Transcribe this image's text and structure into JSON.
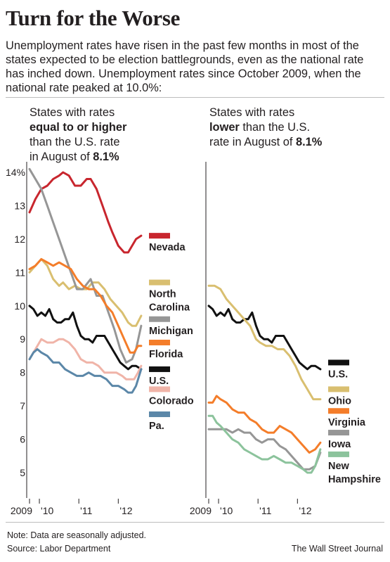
{
  "header": {
    "title": "Turn for the Worse",
    "subtitle": "Unemployment rates have risen in the past few months in most of the states expected to be election battlegrounds, even as the national rate has inched down. Unemployment rates since October 2009, when the national rate peaked at 10.0%:"
  },
  "panels": {
    "left": {
      "pre": "States with rates",
      "bold": "equal to or higher",
      "post1": "than the U.S. rate",
      "post2": "in August of ",
      "rate": "8.1%"
    },
    "right": {
      "pre": "States with rates",
      "bold": "lower",
      "post1": " than the U.S.",
      "post2": "rate in August of ",
      "rate": "8.1%"
    }
  },
  "footer": {
    "note": "Note: Data are seasonally adjusted.",
    "source": "Source: Labor Department",
    "credit": "The Wall Street Journal"
  },
  "chart_data": [
    {
      "type": "line",
      "title": "States with rates equal to or higher than the U.S. rate in August of 8.1%",
      "x_tick_labels": [
        "2009",
        "'10",
        "'11",
        "'12"
      ],
      "x_ticks": [
        2009.75,
        2010.0,
        2011.0,
        2012.0
      ],
      "xlim": [
        2009.75,
        2012.6
      ],
      "ylim": [
        4.3,
        14.0
      ],
      "y_ticks": [
        5,
        6,
        7,
        8,
        9,
        10,
        11,
        12,
        13,
        14
      ],
      "y_tick_labels": [
        "5",
        "6",
        "7",
        "8",
        "9",
        "10",
        "11",
        "12",
        "13",
        "14%"
      ],
      "grid": false,
      "legend": "right of lines, stacked",
      "series": [
        {
          "name": "Nevada",
          "color": "#c8262e",
          "legend_y": 12.1,
          "x": [
            2009.75,
            2009.9,
            2010.05,
            2010.2,
            2010.35,
            2010.5,
            2010.6,
            2010.75,
            2010.9,
            2011.05,
            2011.2,
            2011.3,
            2011.45,
            2011.6,
            2011.75,
            2011.85,
            2012.0,
            2012.15,
            2012.25,
            2012.35,
            2012.45,
            2012.58
          ],
          "values": [
            12.8,
            13.2,
            13.5,
            13.6,
            13.8,
            13.9,
            14.0,
            13.9,
            13.6,
            13.6,
            13.8,
            13.8,
            13.5,
            13.0,
            12.5,
            12.2,
            11.8,
            11.6,
            11.6,
            11.8,
            12.0,
            12.1
          ]
        },
        {
          "name": "North Carolina",
          "color": "#d9bf70",
          "legend_y": 10.7,
          "x": [
            2009.75,
            2009.9,
            2010.05,
            2010.2,
            2010.35,
            2010.5,
            2010.6,
            2010.75,
            2010.9,
            2011.05,
            2011.2,
            2011.35,
            2011.5,
            2011.65,
            2011.8,
            2011.95,
            2012.1,
            2012.25,
            2012.35,
            2012.45,
            2012.58
          ],
          "values": [
            11.0,
            11.2,
            11.4,
            11.2,
            10.8,
            10.6,
            10.7,
            10.5,
            10.6,
            10.5,
            10.5,
            10.7,
            10.7,
            10.5,
            10.2,
            10.0,
            9.8,
            9.5,
            9.4,
            9.4,
            9.7
          ]
        },
        {
          "name": "Michigan",
          "color": "#969696",
          "legend_y": 9.6,
          "x": [
            2009.75,
            2009.9,
            2010.05,
            2010.2,
            2010.35,
            2010.5,
            2010.65,
            2010.8,
            2010.95,
            2011.1,
            2011.3,
            2011.45,
            2011.6,
            2011.75,
            2011.9,
            2012.05,
            2012.2,
            2012.35,
            2012.45,
            2012.58
          ],
          "values": [
            14.1,
            13.8,
            13.5,
            13.0,
            12.5,
            12.0,
            11.5,
            11.0,
            10.5,
            10.5,
            10.8,
            10.3,
            10.3,
            9.8,
            9.3,
            8.7,
            8.3,
            8.4,
            8.7,
            9.4
          ]
        },
        {
          "name": "Florida",
          "color": "#f47d2a",
          "legend_y": 8.9,
          "x": [
            2009.75,
            2009.9,
            2010.05,
            2010.2,
            2010.35,
            2010.5,
            2010.65,
            2010.8,
            2010.95,
            2011.1,
            2011.25,
            2011.4,
            2011.55,
            2011.7,
            2011.85,
            2012.0,
            2012.15,
            2012.3,
            2012.4,
            2012.5,
            2012.58
          ],
          "values": [
            11.1,
            11.2,
            11.4,
            11.3,
            11.2,
            11.3,
            11.2,
            11.1,
            10.8,
            10.6,
            10.5,
            10.5,
            10.3,
            10.0,
            9.8,
            9.4,
            9.0,
            8.6,
            8.6,
            8.8,
            8.8
          ]
        },
        {
          "name": "U.S.",
          "color": "#111111",
          "legend_y": 8.1,
          "x": [
            2009.75,
            2009.85,
            2009.95,
            2010.05,
            2010.15,
            2010.25,
            2010.35,
            2010.45,
            2010.55,
            2010.65,
            2010.75,
            2010.85,
            2010.95,
            2011.05,
            2011.15,
            2011.25,
            2011.35,
            2011.45,
            2011.55,
            2011.65,
            2011.75,
            2011.85,
            2011.95,
            2012.05,
            2012.15,
            2012.25,
            2012.35,
            2012.45,
            2012.58
          ],
          "values": [
            10.0,
            9.9,
            9.7,
            9.8,
            9.7,
            9.9,
            9.6,
            9.5,
            9.5,
            9.6,
            9.6,
            9.8,
            9.4,
            9.1,
            9.0,
            9.0,
            8.9,
            9.1,
            9.1,
            9.1,
            8.9,
            8.7,
            8.5,
            8.3,
            8.2,
            8.1,
            8.2,
            8.2,
            8.1
          ]
        },
        {
          "name": "Colorado",
          "color": "#f0b4a8",
          "legend_y": 7.5,
          "x": [
            2009.75,
            2009.85,
            2009.95,
            2010.05,
            2010.2,
            2010.35,
            2010.5,
            2010.6,
            2010.75,
            2010.9,
            2011.05,
            2011.2,
            2011.35,
            2011.5,
            2011.65,
            2011.8,
            2011.95,
            2012.1,
            2012.2,
            2012.3,
            2012.4,
            2012.5,
            2012.58
          ],
          "values": [
            8.4,
            8.6,
            8.8,
            9.0,
            8.9,
            8.9,
            9.0,
            9.0,
            8.9,
            8.7,
            8.4,
            8.3,
            8.3,
            8.2,
            8.0,
            8.0,
            8.0,
            7.9,
            7.8,
            7.8,
            7.8,
            8.0,
            8.2
          ]
        },
        {
          "name": "Pa.",
          "color": "#5b87a8",
          "legend_y": 6.75,
          "x": [
            2009.75,
            2009.85,
            2009.95,
            2010.05,
            2010.2,
            2010.35,
            2010.5,
            2010.65,
            2010.8,
            2010.95,
            2011.1,
            2011.25,
            2011.4,
            2011.55,
            2011.7,
            2011.85,
            2012.0,
            2012.15,
            2012.25,
            2012.35,
            2012.45,
            2012.58
          ],
          "values": [
            8.4,
            8.6,
            8.7,
            8.6,
            8.5,
            8.3,
            8.3,
            8.1,
            8.0,
            7.9,
            7.9,
            8.0,
            7.9,
            7.9,
            7.8,
            7.6,
            7.6,
            7.5,
            7.4,
            7.4,
            7.6,
            8.1
          ]
        }
      ]
    },
    {
      "type": "line",
      "title": "States with rates lower than the U.S. rate in August of 8.1%",
      "x_tick_labels": [
        "2009",
        "'10",
        "'11",
        "'12"
      ],
      "x_ticks": [
        2009.75,
        2010.0,
        2011.0,
        2012.0
      ],
      "xlim": [
        2009.75,
        2012.6
      ],
      "ylim": [
        4.3,
        14.0
      ],
      "grid": false,
      "legend": "right of lines, stacked",
      "series": [
        {
          "name": "U.S.",
          "color": "#111111",
          "legend_y": 8.3,
          "x": [
            2009.75,
            2009.85,
            2009.95,
            2010.05,
            2010.15,
            2010.25,
            2010.35,
            2010.45,
            2010.55,
            2010.65,
            2010.75,
            2010.85,
            2010.95,
            2011.05,
            2011.15,
            2011.25,
            2011.35,
            2011.45,
            2011.55,
            2011.65,
            2011.75,
            2011.85,
            2011.95,
            2012.05,
            2012.15,
            2012.25,
            2012.35,
            2012.45,
            2012.58
          ],
          "values": [
            10.0,
            9.9,
            9.7,
            9.8,
            9.7,
            9.9,
            9.6,
            9.5,
            9.5,
            9.6,
            9.6,
            9.8,
            9.4,
            9.1,
            9.0,
            9.0,
            8.9,
            9.1,
            9.1,
            9.1,
            8.9,
            8.7,
            8.5,
            8.3,
            8.2,
            8.1,
            8.2,
            8.2,
            8.1
          ]
        },
        {
          "name": "Ohio",
          "color": "#d9bf70",
          "legend_y": 7.5,
          "x": [
            2009.75,
            2009.9,
            2010.05,
            2010.2,
            2010.35,
            2010.5,
            2010.65,
            2010.8,
            2010.95,
            2011.05,
            2011.2,
            2011.35,
            2011.5,
            2011.65,
            2011.8,
            2011.95,
            2012.1,
            2012.25,
            2012.4,
            2012.58
          ],
          "values": [
            10.6,
            10.6,
            10.5,
            10.2,
            10.0,
            9.8,
            9.6,
            9.4,
            9.0,
            8.9,
            8.8,
            8.8,
            8.7,
            8.7,
            8.5,
            8.2,
            7.8,
            7.5,
            7.2,
            7.2
          ]
        },
        {
          "name": "Virginia",
          "color": "#f47d2a",
          "legend_y": 6.85,
          "x": [
            2009.75,
            2009.85,
            2009.95,
            2010.05,
            2010.2,
            2010.35,
            2010.5,
            2010.65,
            2010.8,
            2010.95,
            2011.1,
            2011.25,
            2011.4,
            2011.55,
            2011.7,
            2011.85,
            2012.0,
            2012.15,
            2012.3,
            2012.45,
            2012.58
          ],
          "values": [
            7.1,
            7.1,
            7.3,
            7.2,
            7.1,
            6.9,
            6.8,
            6.8,
            6.6,
            6.5,
            6.3,
            6.2,
            6.2,
            6.4,
            6.3,
            6.2,
            6.0,
            5.8,
            5.6,
            5.7,
            5.9
          ]
        },
        {
          "name": "Iowa",
          "color": "#969696",
          "legend_y": 6.2,
          "x": [
            2009.75,
            2009.9,
            2010.05,
            2010.2,
            2010.35,
            2010.5,
            2010.65,
            2010.8,
            2010.95,
            2011.1,
            2011.25,
            2011.4,
            2011.55,
            2011.7,
            2011.85,
            2012.0,
            2012.15,
            2012.3,
            2012.45,
            2012.58
          ],
          "values": [
            6.3,
            6.3,
            6.3,
            6.3,
            6.2,
            6.3,
            6.2,
            6.2,
            6.0,
            5.9,
            6.0,
            6.0,
            5.8,
            5.7,
            5.5,
            5.3,
            5.1,
            5.1,
            5.2,
            5.6
          ]
        },
        {
          "name": "New Hampshire",
          "color": "#8cc39c",
          "legend_y": 5.55,
          "x": [
            2009.75,
            2009.85,
            2009.95,
            2010.05,
            2010.2,
            2010.35,
            2010.5,
            2010.65,
            2010.8,
            2010.95,
            2011.1,
            2011.25,
            2011.4,
            2011.55,
            2011.7,
            2011.85,
            2012.0,
            2012.15,
            2012.25,
            2012.35,
            2012.45,
            2012.58
          ],
          "values": [
            6.7,
            6.7,
            6.5,
            6.4,
            6.2,
            6.0,
            5.9,
            5.7,
            5.6,
            5.5,
            5.4,
            5.4,
            5.5,
            5.4,
            5.3,
            5.3,
            5.2,
            5.1,
            5.0,
            5.0,
            5.2,
            5.7
          ]
        }
      ]
    }
  ]
}
